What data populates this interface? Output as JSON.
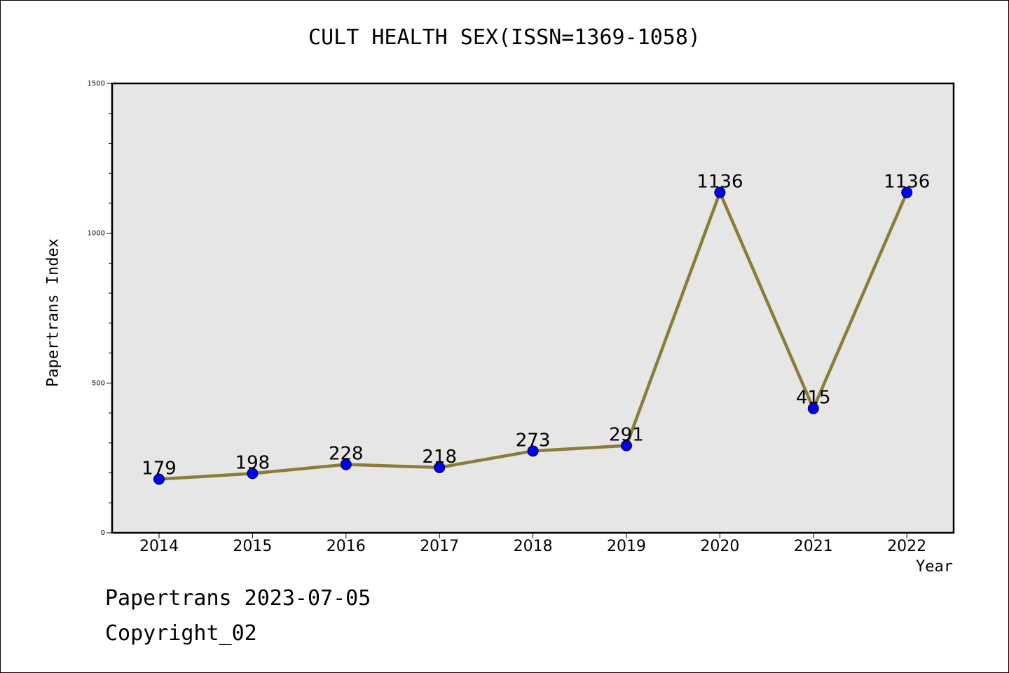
{
  "title": "CULT HEALTH SEX(ISSN=1369-1058)",
  "footer": {
    "line1": "Papertrans 2023-07-05",
    "line2": "Copyright_02"
  },
  "colors": {
    "plot_background": "#e6e6e6",
    "line": "#8b7d38",
    "marker": "#0000ff"
  },
  "chart_data": {
    "type": "line",
    "title": "CULT HEALTH SEX(ISSN=1369-1058)",
    "xlabel": "Year",
    "ylabel": "Papertrans Index",
    "categories": [
      "2014",
      "2015",
      "2016",
      "2017",
      "2018",
      "2019",
      "2020",
      "2021",
      "2022"
    ],
    "values": [
      179,
      198,
      228,
      218,
      273,
      291,
      1136,
      415,
      1136
    ],
    "data_labels": [
      "179",
      "198",
      "228",
      "218",
      "273",
      "291",
      "1136",
      "415",
      "1136"
    ],
    "ylim": [
      0,
      1500
    ],
    "yticks": [
      0,
      500,
      1000,
      1500
    ],
    "y_minor_step": 100,
    "grid": false,
    "legend": "none"
  }
}
